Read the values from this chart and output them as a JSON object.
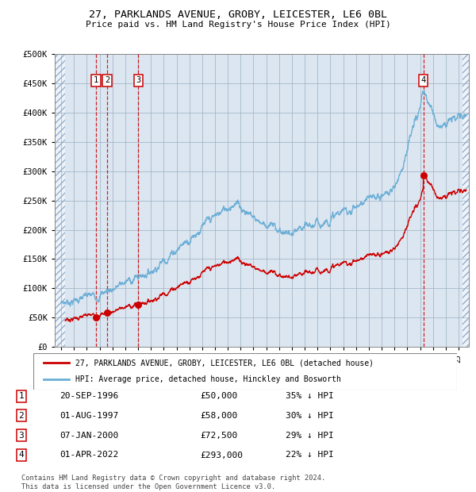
{
  "title1": "27, PARKLANDS AVENUE, GROBY, LEICESTER, LE6 0BL",
  "title2": "Price paid vs. HM Land Registry's House Price Index (HPI)",
  "ylabel_ticks": [
    "£0",
    "£50K",
    "£100K",
    "£150K",
    "£200K",
    "£250K",
    "£300K",
    "£350K",
    "£400K",
    "£450K",
    "£500K"
  ],
  "ytick_vals": [
    0,
    50000,
    100000,
    150000,
    200000,
    250000,
    300000,
    350000,
    400000,
    450000,
    500000
  ],
  "ylim": [
    0,
    500000
  ],
  "xlim_start": 1993.5,
  "xlim_end": 2025.8,
  "hpi_color": "#6baed6",
  "price_color": "#cc0000",
  "sale_points": [
    {
      "date_year": 1996.72,
      "price": 50000,
      "label": "1"
    },
    {
      "date_year": 1997.58,
      "price": 58000,
      "label": "2"
    },
    {
      "date_year": 2000.02,
      "price": 72500,
      "label": "3"
    },
    {
      "date_year": 2022.25,
      "price": 293000,
      "label": "4"
    }
  ],
  "legend_line1": "27, PARKLANDS AVENUE, GROBY, LEICESTER, LE6 0BL (detached house)",
  "legend_line2": "HPI: Average price, detached house, Hinckley and Bosworth",
  "table_rows": [
    {
      "num": "1",
      "date": "20-SEP-1996",
      "price": "£50,000",
      "note": "35% ↓ HPI"
    },
    {
      "num": "2",
      "date": "01-AUG-1997",
      "price": "£58,000",
      "note": "30% ↓ HPI"
    },
    {
      "num": "3",
      "date": "07-JAN-2000",
      "price": "£72,500",
      "note": "29% ↓ HPI"
    },
    {
      "num": "4",
      "date": "01-APR-2022",
      "price": "£293,000",
      "note": "22% ↓ HPI"
    }
  ],
  "footnote": "Contains HM Land Registry data © Crown copyright and database right 2024.\nThis data is licensed under the Open Government Licence v3.0.",
  "bg_color": "#dce6f1",
  "grid_color": "#b0b8c8"
}
